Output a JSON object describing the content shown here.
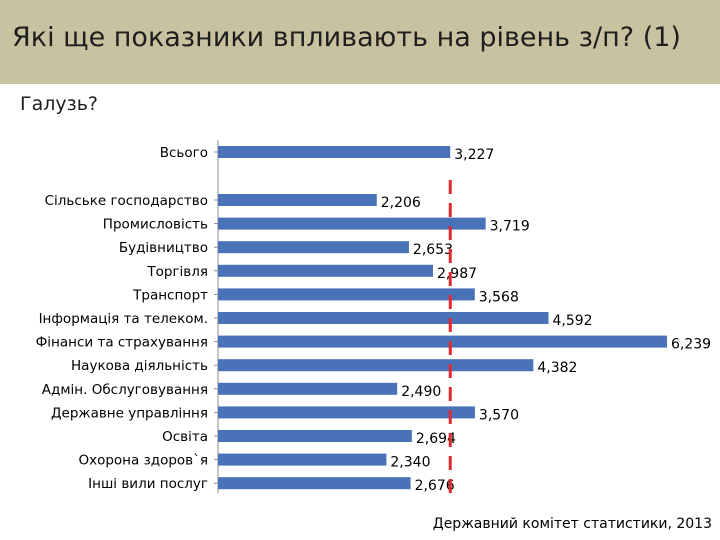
{
  "header": {
    "title": "Які ще показники впливають на рівень з/п? (1)",
    "subtitle": "Галузь?",
    "source": "Державний комітет статистики, 2013"
  },
  "colors": {
    "header_bg": "#c9c2a0",
    "bar": "#4a72b8",
    "reference_line": "#e0282e"
  },
  "chart_data": {
    "type": "bar",
    "orientation": "horizontal",
    "categories": [
      "Всього",
      "Сільське господарство",
      "Промисловість",
      "Будівництво",
      "Торгівля",
      "Транспорт",
      "Інформація та телеком.",
      "Фінанси та страхування",
      "Наукова діяльність",
      "Адмін. Обслуговування",
      "Державне управління",
      "Освіта",
      "Охорона здоров`я",
      "Інші вили послуг"
    ],
    "values": [
      3227,
      2206,
      3719,
      2653,
      2987,
      3568,
      4592,
      6239,
      4382,
      2490,
      3570,
      2694,
      2340,
      2676
    ],
    "data_labels": [
      "3,227",
      "2,206",
      "3,719",
      "2,653",
      "2,987",
      "3,568",
      "4,592",
      "6,239",
      "4,382",
      "2,490",
      "3,570",
      "2,694",
      "2,340",
      "2,676"
    ],
    "reference_line": {
      "value": 3227,
      "style": "dashed"
    },
    "xlim": [
      0,
      6239
    ],
    "gap_after_first": true,
    "title": "",
    "xlabel": "",
    "ylabel": "",
    "grid": false,
    "legend": "none"
  }
}
